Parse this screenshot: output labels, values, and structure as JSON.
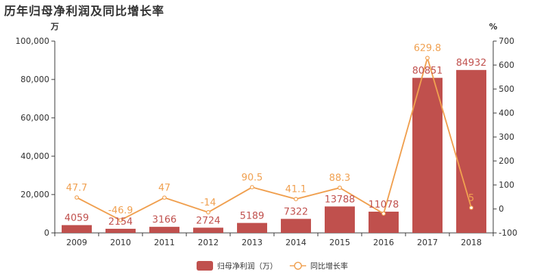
{
  "chart_data": {
    "type": "bar+line",
    "title": "历年归母净利润及同比增长率",
    "y_left_unit": "万",
    "y_right_unit": "%",
    "categories": [
      "2009",
      "2010",
      "2011",
      "2012",
      "2013",
      "2014",
      "2015",
      "2016",
      "2017",
      "2018"
    ],
    "y_left": {
      "min": 0,
      "max": 100000,
      "ticks": [
        0,
        20000,
        40000,
        60000,
        80000,
        100000
      ],
      "tick_labels": [
        "0",
        "20,000",
        "40,000",
        "60,000",
        "80,000",
        "100,000"
      ]
    },
    "y_right": {
      "min": -100,
      "max": 700,
      "ticks": [
        -100,
        0,
        100,
        200,
        300,
        400,
        500,
        600,
        700
      ],
      "tick_labels": [
        "-100",
        "0",
        "100",
        "200",
        "300",
        "400",
        "500",
        "600",
        "700"
      ]
    },
    "series": [
      {
        "name": "归母净利润（万）",
        "kind": "bar",
        "axis": "left",
        "color": "#c0504d",
        "values": [
          4059,
          2154,
          3166,
          2724,
          5189,
          7322,
          13788,
          11078,
          80851,
          84932
        ],
        "labels": [
          "4059",
          "2154",
          "3166",
          "2724",
          "5189",
          "7322",
          "13788",
          "11078",
          "80851",
          "84932"
        ]
      },
      {
        "name": "同比增长率",
        "kind": "line",
        "axis": "right",
        "color": "#f0a050",
        "values": [
          47.7,
          -46.9,
          47,
          -14,
          90.5,
          41.1,
          88.3,
          -19.6,
          629.8,
          5
        ],
        "labels": [
          "47.7",
          "-46.9",
          "47",
          "-14",
          "90.5",
          "41.1",
          "88.3",
          "",
          "629.8",
          "5"
        ]
      }
    ],
    "legend_position": "bottom-center",
    "grid": false
  }
}
